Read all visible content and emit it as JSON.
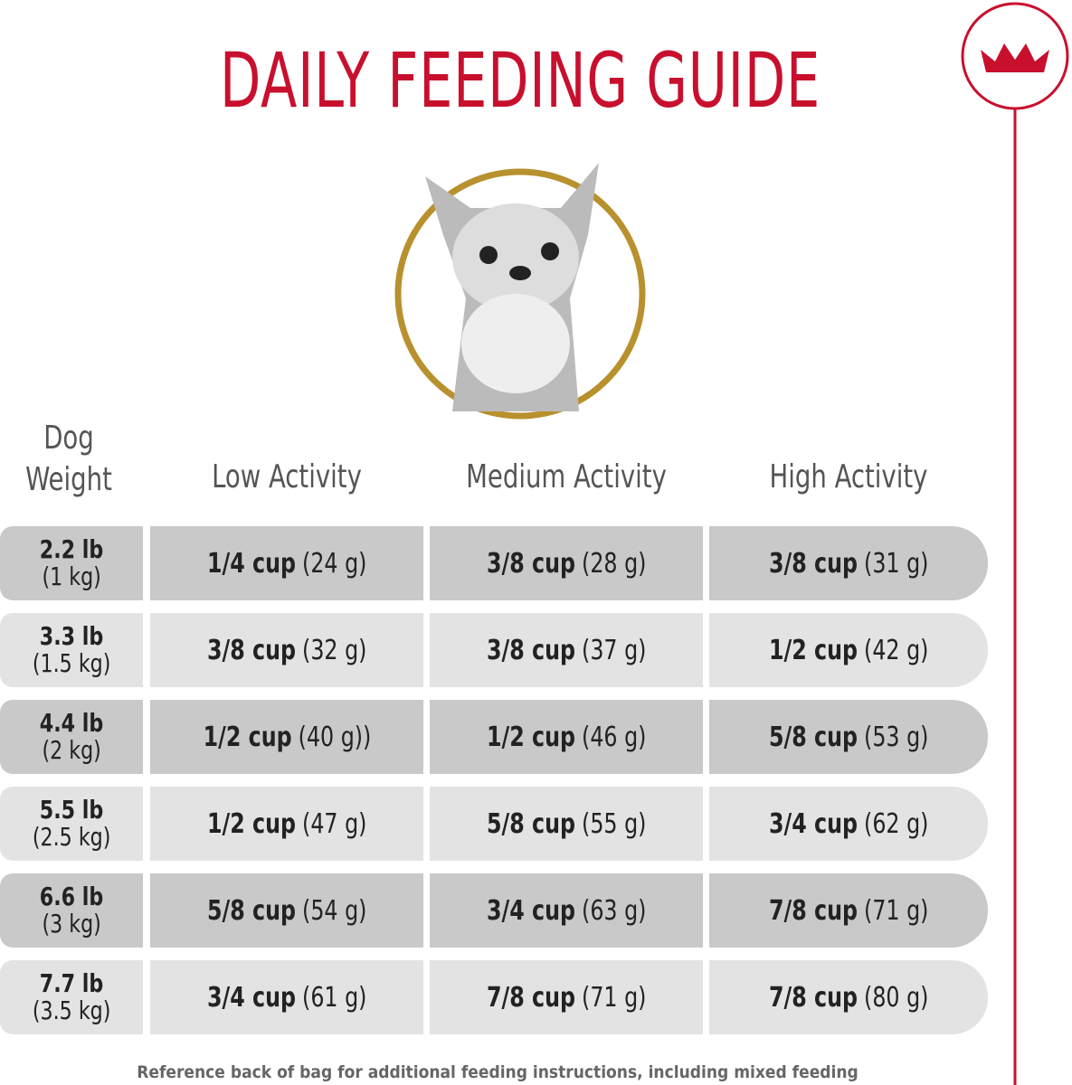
{
  "header": {
    "title": "DAILY FEEDING GUIDE"
  },
  "table": {
    "columns": [
      "Dog Weight",
      "Low Activity",
      "Medium Activity",
      "High Activity"
    ],
    "rows": [
      {
        "weight": "2.2 lb",
        "metric": "(1 kg)",
        "cells": [
          {
            "cup": "1/4 cup",
            "grams": "(24 g)"
          },
          {
            "cup": "3/8 cup",
            "grams": "(28 g)"
          },
          {
            "cup": "3/8 cup",
            "grams": "(31 g)"
          }
        ]
      },
      {
        "weight": "3.3 lb",
        "metric": "(1.5 kg)",
        "cells": [
          {
            "cup": "3/8 cup",
            "grams": "(32 g)"
          },
          {
            "cup": "3/8 cup",
            "grams": "(37 g)"
          },
          {
            "cup": "1/2 cup",
            "grams": "(42 g)"
          }
        ]
      },
      {
        "weight": "4.4 lb",
        "metric": "(2 kg)",
        "cells": [
          {
            "cup": "1/2 cup",
            "grams": "(40 g))"
          },
          {
            "cup": "1/2 cup",
            "grams": "(46 g)"
          },
          {
            "cup": "5/8 cup",
            "grams": "(53 g)"
          }
        ]
      },
      {
        "weight": "5.5 lb",
        "metric": "(2.5 kg)",
        "cells": [
          {
            "cup": "1/2 cup",
            "grams": "(47 g)"
          },
          {
            "cup": "5/8 cup",
            "grams": "(55 g)"
          },
          {
            "cup": "3/4 cup",
            "grams": "(62 g)"
          }
        ]
      },
      {
        "weight": "6.6 lb",
        "metric": "(3 kg)",
        "cells": [
          {
            "cup": "5/8 cup",
            "grams": "(54 g)"
          },
          {
            "cup": "3/4 cup",
            "grams": "(63 g)"
          },
          {
            "cup": "7/8 cup",
            "grams": "(71 g)"
          }
        ]
      },
      {
        "weight": "7.7 lb",
        "metric": "(3.5 kg)",
        "cells": [
          {
            "cup": "3/4 cup",
            "grams": "(61 g)"
          },
          {
            "cup": "7/8 cup",
            "grams": "(71 g)"
          },
          {
            "cup": "7/8 cup",
            "grams": "(80 g)"
          }
        ]
      }
    ]
  },
  "footer": {
    "note": "Reference back of bag for additional feeding instructions, including mixed feeding"
  }
}
